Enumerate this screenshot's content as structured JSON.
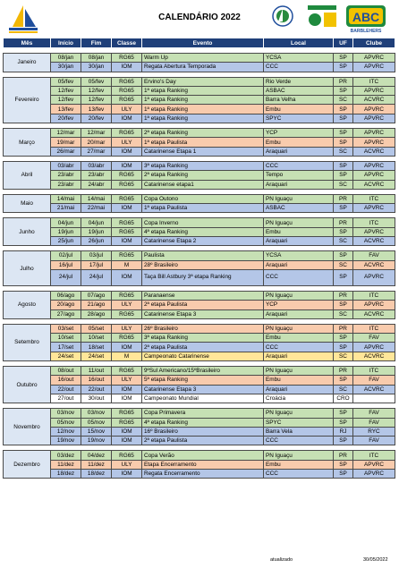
{
  "title": "CALENDÁRIO 2022",
  "logos": {
    "abc_text": "ABC",
    "abc_sub": "BARBLEHERS"
  },
  "columns": [
    "Mês",
    "Início",
    "Fim",
    "Classe",
    "Evento",
    "Local",
    "UF",
    "Clube"
  ],
  "months": [
    {
      "name": "Janeiro",
      "rows": [
        {
          "s": "08/jan",
          "e": "08/jan",
          "c": "RG65",
          "ev": "Warm Up",
          "l": "YCSA",
          "uf": "SP",
          "cl": "APVRC",
          "col": "g"
        },
        {
          "s": "30/jan",
          "e": "30/jan",
          "c": "IOM",
          "ev": "Regata Abertura Temporada",
          "l": "CCC",
          "uf": "SP",
          "cl": "APVRC",
          "col": "b"
        }
      ]
    },
    {
      "name": "Fevereiro",
      "rows": [
        {
          "s": "05/fev",
          "e": "05/fev",
          "c": "RG65",
          "ev": "Ervino's Day",
          "l": "Rio Verde",
          "uf": "PR",
          "cl": "ITC",
          "col": "g"
        },
        {
          "s": "12/fev",
          "e": "12/fev",
          "c": "RG65",
          "ev": "1ª etapa Ranking",
          "l": "ASBAC",
          "uf": "SP",
          "cl": "APVRC",
          "col": "g"
        },
        {
          "s": "12/fev",
          "e": "12/fev",
          "c": "RG65",
          "ev": "1ª etapa Ranking",
          "l": "Barra Velha",
          "uf": "SC",
          "cl": "ACVRC",
          "col": "g"
        },
        {
          "s": "13/fev",
          "e": "13/fev",
          "c": "ULY",
          "ev": "1ª etapa Ranking",
          "l": "Embu",
          "uf": "SP",
          "cl": "APVRC",
          "col": "o"
        },
        {
          "s": "20/fev",
          "e": "20/fev",
          "c": "IOM",
          "ev": "1ª etapa Ranking",
          "l": "SPYC",
          "uf": "SP",
          "cl": "APVRC",
          "col": "b"
        }
      ]
    },
    {
      "name": "Março",
      "rows": [
        {
          "s": "12/mar",
          "e": "12/mar",
          "c": "RG65",
          "ev": "2ª etapa Ranking",
          "l": "YCP",
          "uf": "SP",
          "cl": "APVRC",
          "col": "g"
        },
        {
          "s": "19/mar",
          "e": "20/mar",
          "c": "ULY",
          "ev": "1ª etapa Paulista",
          "l": "Embu",
          "uf": "SP",
          "cl": "APVRC",
          "col": "o"
        },
        {
          "s": "26/mar",
          "e": "27/mar",
          "c": "IOM",
          "ev": "Catarinense Etapa 1",
          "l": "Araquari",
          "uf": "SC",
          "cl": "ACVRC",
          "col": "b"
        }
      ]
    },
    {
      "name": "Abril",
      "rows": [
        {
          "s": "03/abr",
          "e": "03/abr",
          "c": "IOM",
          "ev": "3ª etapa Ranking",
          "l": "CCC",
          "uf": "SP",
          "cl": "APVRC",
          "col": "b"
        },
        {
          "s": "23/abr",
          "e": "23/abr",
          "c": "RG65",
          "ev": "2ª etapa Ranking",
          "l": "Tempo",
          "uf": "SP",
          "cl": "APVRC",
          "col": "g"
        },
        {
          "s": "23/abr",
          "e": "24/abr",
          "c": "RG65",
          "ev": "Catarinense etapa1",
          "l": "Araquari",
          "uf": "SC",
          "cl": "ACVRC",
          "col": "g"
        }
      ]
    },
    {
      "name": "Maio",
      "rows": [
        {
          "s": "14/mai",
          "e": "14/mai",
          "c": "RG65",
          "ev": "Copa Outono",
          "l": "PN Iguaçu",
          "uf": "PR",
          "cl": "ITC",
          "col": "g"
        },
        {
          "s": "21/mai",
          "e": "22/mai",
          "c": "IOM",
          "ev": "1ª etapa Paulista",
          "l": "ASBAC",
          "uf": "SP",
          "cl": "APVRC",
          "col": "b"
        }
      ]
    },
    {
      "name": "Junho",
      "rows": [
        {
          "s": "04/jun",
          "e": "04/jun",
          "c": "RG65",
          "ev": "Copa Inverno",
          "l": "PN Iguaçu",
          "uf": "PR",
          "cl": "ITC",
          "col": "g"
        },
        {
          "s": "19/jun",
          "e": "19/jun",
          "c": "RG65",
          "ev": "4ª etapa Ranking",
          "l": "Embu",
          "uf": "SP",
          "cl": "APVRC",
          "col": "g"
        },
        {
          "s": "25/jun",
          "e": "26/jun",
          "c": "IOM",
          "ev": "Catarinense Etapa 2",
          "l": "Araquari",
          "uf": "SC",
          "cl": "ACVRC",
          "col": "b"
        }
      ]
    },
    {
      "name": "Julho",
      "rows": [
        {
          "s": "02/jul",
          "e": "03/jul",
          "c": "RG65",
          "ev": "Paulista",
          "l": "YCSA",
          "uf": "SP",
          "cl": "FAV",
          "col": "g"
        },
        {
          "s": "16/jul",
          "e": "17/jul",
          "c": "M",
          "ev": "28º Brasileiro",
          "l": "Araquari",
          "uf": "SC",
          "cl": "ACVRC",
          "col": "o"
        },
        {
          "s": "24/jul",
          "e": "24/jul",
          "c": "IOM",
          "ev": "Taça Bill Astbury 3ª etapa Ranking",
          "l": "CCC",
          "uf": "SP",
          "cl": "APVRC",
          "col": "b",
          "tall": true
        }
      ]
    },
    {
      "name": "Agosto",
      "rows": [
        {
          "s": "06/ago",
          "e": "07/ago",
          "c": "RG65",
          "ev": "Paranaense",
          "l": "PN Iguaçu",
          "uf": "PR",
          "cl": "ITC",
          "col": "g"
        },
        {
          "s": "20/ago",
          "e": "21/ago",
          "c": "ULY",
          "ev": "2ª etapa Paulista",
          "l": "YCP",
          "uf": "SP",
          "cl": "APVRC",
          "col": "o"
        },
        {
          "s": "27/ago",
          "e": "28/ago",
          "c": "RG65",
          "ev": "Catarinense Etapa 3",
          "l": "Araquari",
          "uf": "SC",
          "cl": "ACVRC",
          "col": "g"
        }
      ]
    },
    {
      "name": "Setembro",
      "rows": [
        {
          "s": "03/set",
          "e": "05/set",
          "c": "ULY",
          "ev": "26º Brasileiro",
          "l": "PN Iguaçu",
          "uf": "PR",
          "cl": "ITC",
          "col": "o"
        },
        {
          "s": "10/set",
          "e": "10/set",
          "c": "RG65",
          "ev": "3ª etapa Ranking",
          "l": "Embu",
          "uf": "SP",
          "cl": "FAV",
          "col": "g"
        },
        {
          "s": "17/set",
          "e": "18/set",
          "c": "IOM",
          "ev": "2ª etapa Paulista",
          "l": "CCC",
          "uf": "SP",
          "cl": "APVRC",
          "col": "b"
        },
        {
          "s": "24/set",
          "e": "24/set",
          "c": "M",
          "ev": "Campeonato Catarinense",
          "l": "Araquari",
          "uf": "SC",
          "cl": "ACVRC",
          "col": "y"
        }
      ]
    },
    {
      "name": "Outubro",
      "rows": [
        {
          "s": "08/out",
          "e": "11/out",
          "c": "RG65",
          "ev": "9ºSul Americano/15ºBrasileiro",
          "l": "PN Iguaçu",
          "uf": "PR",
          "cl": "ITC",
          "col": "g"
        },
        {
          "s": "16/out",
          "e": "16/out",
          "c": "ULY",
          "ev": "5ª etapa Ranking",
          "l": "Embu",
          "uf": "SP",
          "cl": "FAV",
          "col": "o"
        },
        {
          "s": "22/out",
          "e": "22/out",
          "c": "IOM",
          "ev": "Catarinense Etapa 3",
          "l": "Araquari",
          "uf": "SC",
          "cl": "ACVRC",
          "col": "b"
        },
        {
          "s": "27/out",
          "e": "30/out",
          "c": "IOM",
          "ev": "Campeonato Mundial",
          "l": "Croácia",
          "uf": "CRO",
          "cl": "",
          "col": "w"
        }
      ]
    },
    {
      "name": "Novembro",
      "rows": [
        {
          "s": "03/nov",
          "e": "03/nov",
          "c": "RG65",
          "ev": "Copa Primavera",
          "l": "PN Iguaçu",
          "uf": "SP",
          "cl": "FAV",
          "col": "g"
        },
        {
          "s": "05/nov",
          "e": "05/nov",
          "c": "RG65",
          "ev": "4ª etapa Ranking",
          "l": "SPYC",
          "uf": "SP",
          "cl": "FAV",
          "col": "g"
        },
        {
          "s": "12/nov",
          "e": "15/nov",
          "c": "IOM",
          "ev": "16º Brasileiro",
          "l": "Barra Vela",
          "uf": "RJ",
          "cl": "RYC",
          "col": "b"
        },
        {
          "s": "19/nov",
          "e": "19/nov",
          "c": "IOM",
          "ev": "2ª etapa Paulista",
          "l": "CCC",
          "uf": "SP",
          "cl": "FAV",
          "col": "b"
        }
      ]
    },
    {
      "name": "Dezembro",
      "rows": [
        {
          "s": "03/dez",
          "e": "04/dez",
          "c": "RG65",
          "ev": "Copa Verão",
          "l": "PN Iguaçu",
          "uf": "PR",
          "cl": "ITC",
          "col": "g"
        },
        {
          "s": "11/dez",
          "e": "11/dez",
          "c": "ULY",
          "ev": "Etapa Encerramento",
          "l": "Embu",
          "uf": "SP",
          "cl": "APVRC",
          "col": "o"
        },
        {
          "s": "18/dez",
          "e": "18/dez",
          "c": "IOM",
          "ev": "Regata Encerramento",
          "l": "CCC",
          "uf": "SP",
          "cl": "APVRC",
          "col": "b"
        }
      ]
    }
  ],
  "footer": {
    "label": "atualizado",
    "date": "30/05/2022"
  }
}
